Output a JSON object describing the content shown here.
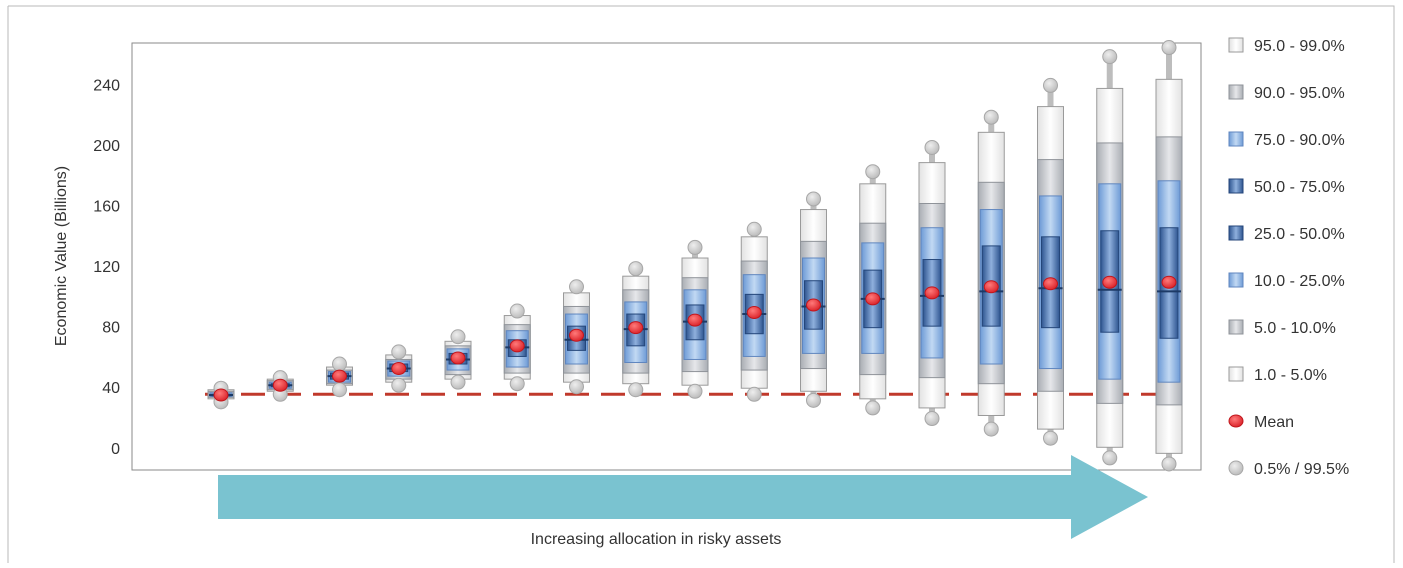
{
  "chart_data": {
    "type": "box",
    "title": "",
    "xlabel": "Increasing allocation in risky assets",
    "ylabel": "Economic Value (Billions)",
    "ylim": [
      -14,
      268
    ],
    "yticks": [
      0,
      40,
      80,
      120,
      160,
      200,
      240
    ],
    "grid": false,
    "legend_position": "right",
    "reference_line": {
      "value": 36,
      "color": "#c0392b",
      "style": "dashed"
    },
    "colors": {
      "band_outer": "#f4f4f4",
      "band_grey": "#c9ccd1",
      "band_light_blue": "#8fb5e3",
      "band_dark_blue": "#3f6aa6",
      "mean": "#e8383d",
      "extreme": "#cccccc",
      "arrow": "#7ac3d0"
    },
    "legend": [
      {
        "label": "95.0 - 99.0%",
        "kind": "outer"
      },
      {
        "label": "90.0 - 95.0%",
        "kind": "grey"
      },
      {
        "label": "75.0 - 90.0%",
        "kind": "lightblue"
      },
      {
        "label": "50.0 - 75.0%",
        "kind": "darkblue"
      },
      {
        "label": "25.0 - 50.0%",
        "kind": "darkblue"
      },
      {
        "label": "10.0 - 25.0%",
        "kind": "lightblue"
      },
      {
        "label": "5.0 - 10.0%",
        "kind": "grey"
      },
      {
        "label": "1.0 - 5.0%",
        "kind": "outer"
      },
      {
        "label": "Mean",
        "kind": "mean"
      },
      {
        "label": "0.5% / 99.5%",
        "kind": "extreme"
      }
    ],
    "series": [
      {
        "p005": 31,
        "p01": 33,
        "p05": 34,
        "p10": 34.5,
        "p25": 35,
        "p50": 35.5,
        "p75": 36,
        "p90": 37,
        "p95": 38,
        "p99": 39,
        "p995": 40,
        "mean": 35.5
      },
      {
        "p005": 36,
        "p01": 38,
        "p05": 39,
        "p10": 40,
        "p25": 41,
        "p50": 42,
        "p75": 43,
        "p90": 44,
        "p95": 45,
        "p99": 46,
        "p995": 47,
        "mean": 42
      },
      {
        "p005": 39,
        "p01": 42,
        "p05": 43,
        "p10": 44,
        "p25": 46,
        "p50": 48,
        "p75": 50,
        "p90": 51,
        "p95": 52,
        "p99": 54,
        "p995": 56,
        "mean": 48
      },
      {
        "p005": 42,
        "p01": 44,
        "p05": 46,
        "p10": 48,
        "p25": 51,
        "p50": 53,
        "p75": 56,
        "p90": 58,
        "p95": 59,
        "p99": 62,
        "p995": 64,
        "mean": 53
      },
      {
        "p005": 44,
        "p01": 46,
        "p05": 49,
        "p10": 52,
        "p25": 56,
        "p50": 59,
        "p75": 63,
        "p90": 66,
        "p95": 68,
        "p99": 71,
        "p995": 74,
        "mean": 60
      },
      {
        "p005": 43,
        "p01": 46,
        "p05": 50,
        "p10": 54,
        "p25": 61,
        "p50": 67,
        "p75": 72,
        "p90": 78,
        "p95": 82,
        "p99": 88,
        "p995": 91,
        "mean": 68
      },
      {
        "p005": 41,
        "p01": 44,
        "p05": 50,
        "p10": 56,
        "p25": 65,
        "p50": 72,
        "p75": 81,
        "p90": 89,
        "p95": 94,
        "p99": 103,
        "p995": 107,
        "mean": 75
      },
      {
        "p005": 39,
        "p01": 43,
        "p05": 50,
        "p10": 57,
        "p25": 68,
        "p50": 79,
        "p75": 89,
        "p90": 97,
        "p95": 105,
        "p99": 114,
        "p995": 119,
        "mean": 80
      },
      {
        "p005": 38,
        "p01": 42,
        "p05": 51,
        "p10": 59,
        "p25": 72,
        "p50": 84,
        "p75": 95,
        "p90": 105,
        "p95": 113,
        "p99": 126,
        "p995": 133,
        "mean": 85
      },
      {
        "p005": 36,
        "p01": 40,
        "p05": 52,
        "p10": 61,
        "p25": 76,
        "p50": 89,
        "p75": 102,
        "p90": 115,
        "p95": 124,
        "p99": 140,
        "p995": 145,
        "mean": 90
      },
      {
        "p005": 32,
        "p01": 38,
        "p05": 53,
        "p10": 63,
        "p25": 79,
        "p50": 94,
        "p75": 111,
        "p90": 126,
        "p95": 137,
        "p99": 158,
        "p995": 165,
        "mean": 95
      },
      {
        "p005": 27,
        "p01": 33,
        "p05": 49,
        "p10": 63,
        "p25": 80,
        "p50": 99,
        "p75": 118,
        "p90": 136,
        "p95": 149,
        "p99": 175,
        "p995": 183,
        "mean": 99
      },
      {
        "p005": 20,
        "p01": 27,
        "p05": 47,
        "p10": 60,
        "p25": 81,
        "p50": 101,
        "p75": 125,
        "p90": 146,
        "p95": 162,
        "p99": 189,
        "p995": 199,
        "mean": 103
      },
      {
        "p005": 13,
        "p01": 22,
        "p05": 43,
        "p10": 56,
        "p25": 81,
        "p50": 104,
        "p75": 134,
        "p90": 158,
        "p95": 176,
        "p99": 209,
        "p995": 219,
        "mean": 107
      },
      {
        "p005": 7,
        "p01": 13,
        "p05": 38,
        "p10": 53,
        "p25": 80,
        "p50": 106,
        "p75": 140,
        "p90": 167,
        "p95": 191,
        "p99": 226,
        "p995": 240,
        "mean": 109
      },
      {
        "p005": -6,
        "p01": 1,
        "p05": 30,
        "p10": 46,
        "p25": 77,
        "p50": 105,
        "p75": 144,
        "p90": 175,
        "p95": 202,
        "p99": 238,
        "p995": 259,
        "mean": 110
      },
      {
        "p005": -10,
        "p01": -3,
        "p05": 29,
        "p10": 44,
        "p25": 73,
        "p50": 104,
        "p75": 146,
        "p90": 177,
        "p95": 206,
        "p99": 244,
        "p995": 265,
        "mean": 110
      }
    ]
  }
}
